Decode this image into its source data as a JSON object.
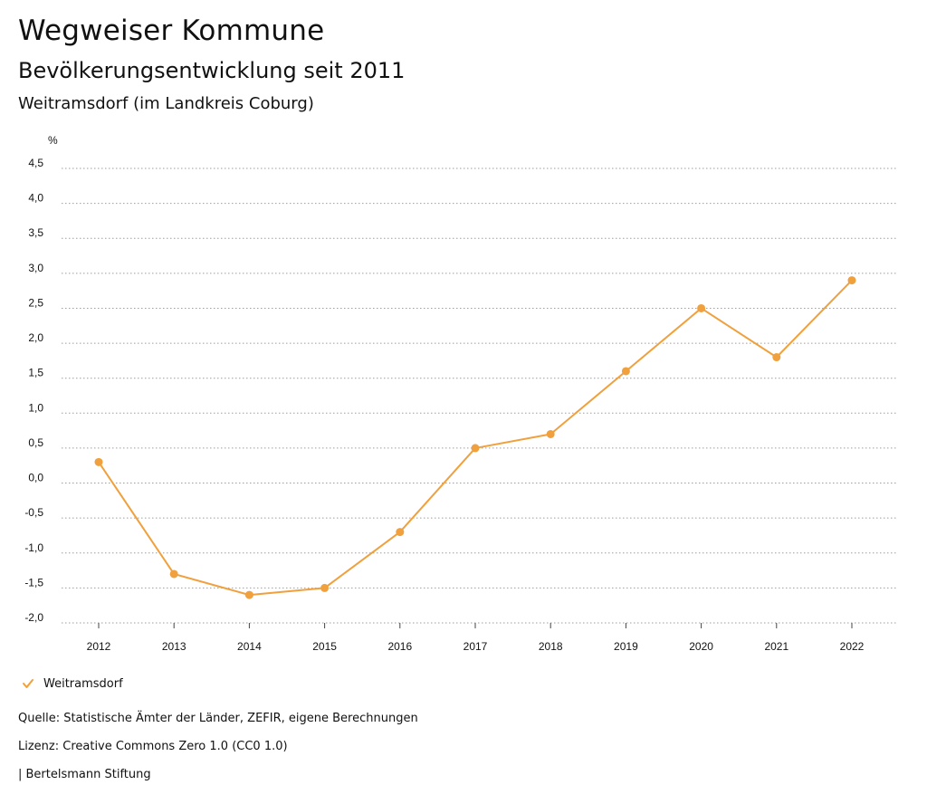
{
  "header": {
    "title": "Wegweiser Kommune",
    "subtitle": "Bevölkerungsentwicklung seit 2011",
    "region": "Weitramsdorf (im Landkreis Coburg)"
  },
  "colors": {
    "series": "#f0a03c",
    "grid": "#9e9e9e",
    "text": "#111111"
  },
  "legend": {
    "label": "Weitramsdorf",
    "icon": "check-icon"
  },
  "footer": {
    "source": "Quelle: Statistische Ämter der Länder, ZEFIR, eigene Berechnungen",
    "license": "Lizenz: Creative Commons Zero 1.0 (CC0 1.0)",
    "publisher": "| Bertelsmann Stiftung"
  },
  "chart_data": {
    "type": "line",
    "title": "Bevölkerungsentwicklung seit 2011",
    "xlabel": "",
    "ylabel": "%",
    "categories": [
      "2012",
      "2013",
      "2014",
      "2015",
      "2016",
      "2017",
      "2018",
      "2019",
      "2020",
      "2021",
      "2022"
    ],
    "series": [
      {
        "name": "Weitramsdorf",
        "values": [
          0.3,
          -1.3,
          -1.6,
          -1.5,
          -0.7,
          0.5,
          0.7,
          1.6,
          2.5,
          1.8,
          2.9
        ]
      }
    ],
    "ylim": [
      -2.0,
      4.5
    ],
    "yticks": [
      4.5,
      4.0,
      3.5,
      3.0,
      2.5,
      2.0,
      1.5,
      1.0,
      0.5,
      0.0,
      -0.5,
      -1.0,
      -1.5,
      -2.0
    ],
    "ytick_labels": [
      "4,5",
      "4,0",
      "3,5",
      "3,0",
      "2,5",
      "2,0",
      "1,5",
      "1,0",
      "0,5",
      "0,0",
      "-0,5",
      "-1,0",
      "-1,5",
      "-2,0"
    ],
    "grid": true,
    "legend_position": "bottom-left"
  }
}
